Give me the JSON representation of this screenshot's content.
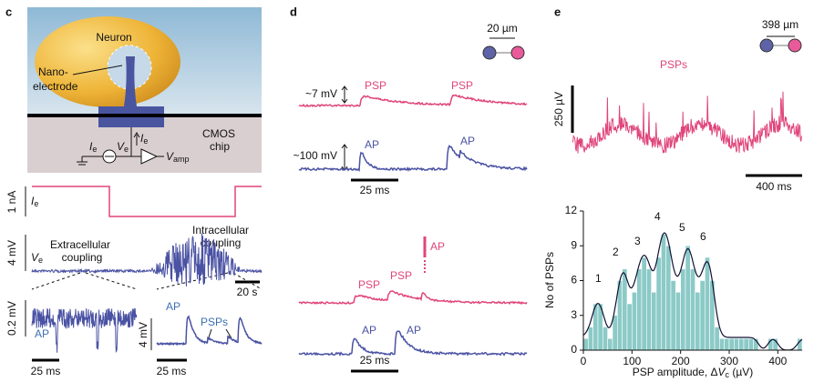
{
  "panel_c": {
    "letter": "c",
    "neuron": "Neuron",
    "nano": "Nano-",
    "electrode": "electrode",
    "cmos": "CMOS",
    "chip": "chip",
    "ie_arrow": {
      "main": "I",
      "sub": "e"
    },
    "ie_source": {
      "main": "I",
      "sub": "e"
    },
    "ve_node": {
      "main": "V",
      "sub": "e"
    },
    "vamp": {
      "main": "V",
      "sub": "amp"
    },
    "current_scale": "1 nA",
    "ie_trace": {
      "main": "I",
      "sub": "e"
    },
    "voltage_scale": "4 mV",
    "ve_trace": {
      "main": "V",
      "sub": "e"
    },
    "extracellular": "Extracellular",
    "extra_coupling": "coupling",
    "intracellular": "Intracellular",
    "intra_coupling": "coupling",
    "time_scale": "20 s",
    "left_inset": {
      "scale": "0.2 mV",
      "ap": "AP",
      "time": "25 ms"
    },
    "right_inset": {
      "scale": "4 mV",
      "ap": "AP",
      "psps": "PSPs",
      "time": "25 ms"
    }
  },
  "panel_d": {
    "letter": "d",
    "distance": "20 µm",
    "psp_scale": "~7 mV",
    "psp1": "PSP",
    "psp2": "PSP",
    "ap_scale": "~100 mV",
    "ap1": "AP",
    "ap2": "AP",
    "time1": "25 ms",
    "psp3": "PSP",
    "psp4": "PSP",
    "ap_pink": "AP",
    "ap3": "AP",
    "ap4": "AP",
    "time2": "25 ms"
  },
  "panel_e": {
    "letter": "e",
    "distance": "398 µm",
    "psps": "PSPs",
    "volt_scale": "250 µV",
    "time_scale": "400 ms"
  },
  "chart_data": {
    "type": "histogram",
    "ylabel": "No of PSPs",
    "xlabel": {
      "pre": "PSP amplitude, Δ",
      "var": "V",
      "sub": "c",
      "post": " (µV)"
    },
    "bins": [
      0,
      10,
      20,
      30,
      40,
      50,
      60,
      70,
      80,
      90,
      100,
      110,
      120,
      130,
      140,
      150,
      160,
      170,
      180,
      190,
      200,
      210,
      220,
      230,
      240,
      250,
      260,
      270,
      280,
      290,
      300,
      310,
      320,
      330,
      340,
      350,
      360,
      370,
      380,
      390,
      400,
      410,
      420,
      430,
      440,
      450
    ],
    "values": [
      1,
      2,
      4,
      4,
      2,
      1,
      3,
      6,
      7,
      4,
      5,
      7,
      8,
      7,
      5,
      8,
      10,
      9,
      6,
      5,
      7,
      9,
      7,
      5,
      6,
      8,
      6,
      2,
      1,
      1,
      1,
      1,
      1,
      1,
      1,
      1,
      0,
      0,
      1,
      1,
      0,
      0,
      0,
      0,
      1
    ],
    "color": "#8ccac7",
    "xlim": [
      0,
      450
    ],
    "ylim": [
      0,
      12
    ],
    "xticks": [
      0,
      100,
      200,
      300,
      400
    ],
    "yticks": [
      0,
      3,
      6,
      9,
      12
    ],
    "peak_labels": [
      "1",
      "2",
      "3",
      "4",
      "5",
      "6"
    ]
  }
}
